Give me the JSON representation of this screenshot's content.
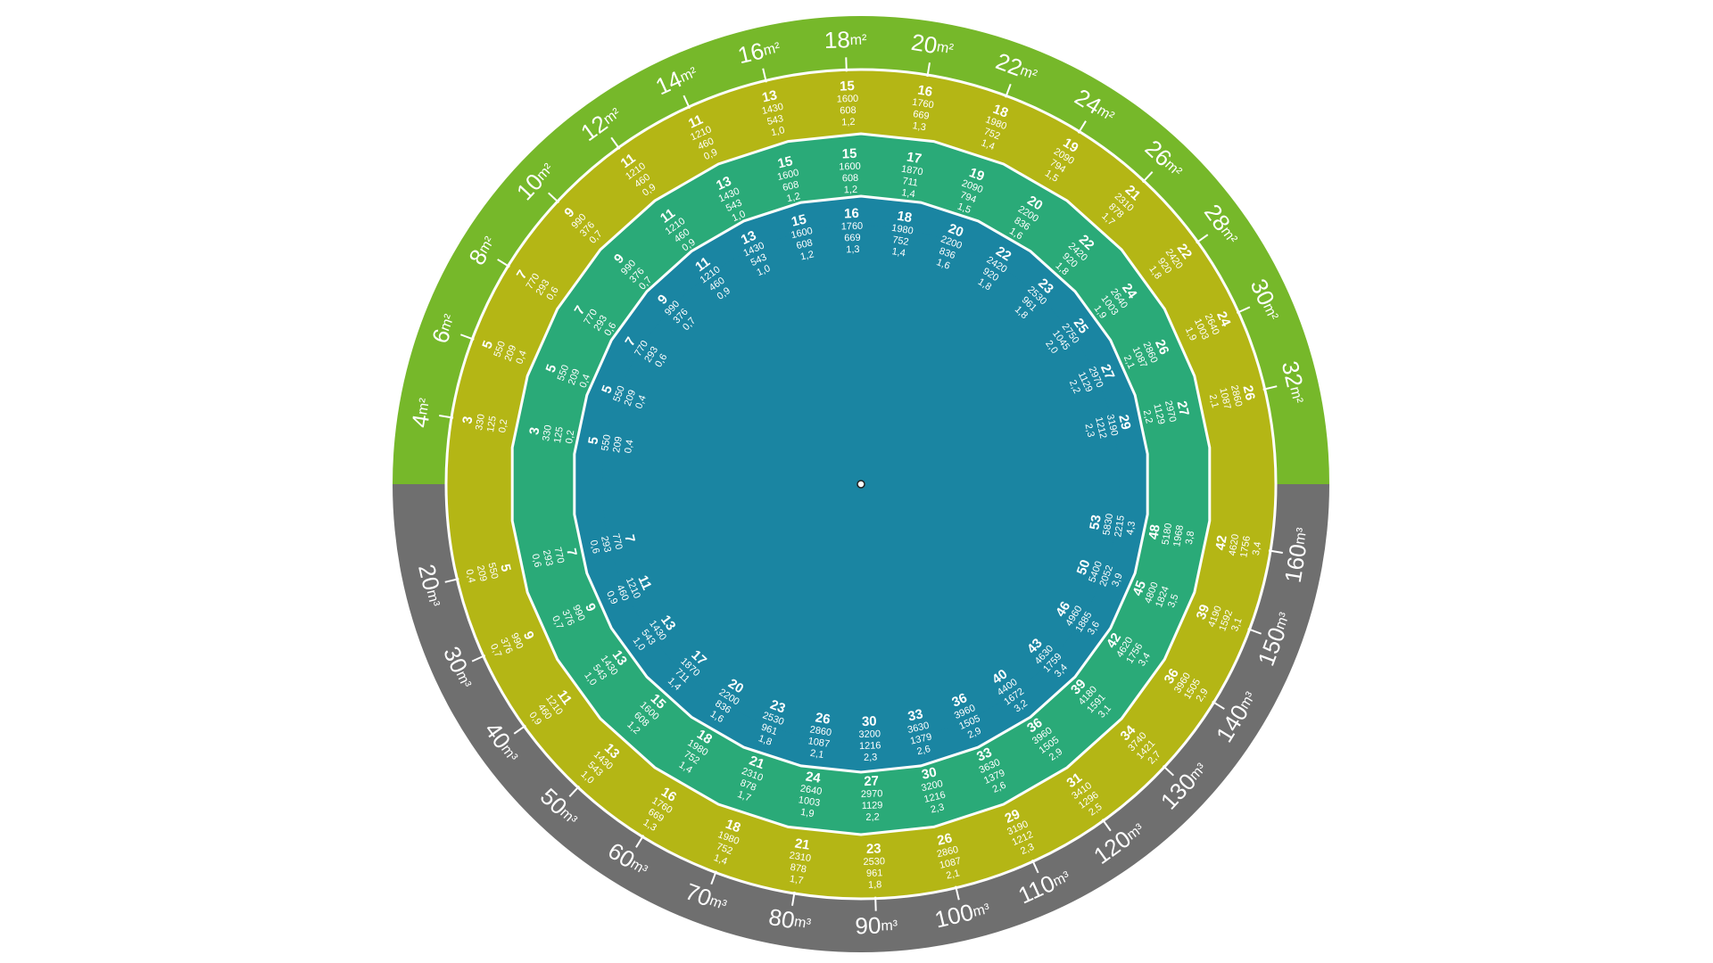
{
  "colors": {
    "area_band": "#76b82a",
    "volume_band": "#6f6f6f",
    "ring1": "#b4b615",
    "ring2": "#2aaa78",
    "ring3": "#1a85a2",
    "center": "#1a85a2",
    "divider": "#ffffff"
  },
  "area_labels": [
    "4m²",
    "6m²",
    "8m²",
    "10m²",
    "12m²",
    "14m²",
    "16m²",
    "18m²",
    "20m²",
    "22m²",
    "24m²",
    "26m²",
    "28m²",
    "30m²",
    "32m²"
  ],
  "volume_labels": [
    "20m³",
    "30m³",
    "40m³",
    "50m³",
    "60m³",
    "70m³",
    "80m³",
    "90m³",
    "100m³",
    "110m³",
    "120m³",
    "130m³",
    "140m³",
    "150m³",
    "160m³"
  ],
  "ring1_top": [
    [
      "3",
      "330",
      "125",
      "0,2"
    ],
    [
      "5",
      "550",
      "209",
      "0,4"
    ],
    [
      "7",
      "770",
      "293",
      "0,6"
    ],
    [
      "9",
      "990",
      "376",
      "0,7"
    ],
    [
      "11",
      "1210",
      "460",
      "0,9"
    ],
    [
      "11",
      "1210",
      "460",
      "0,9"
    ],
    [
      "13",
      "1430",
      "543",
      "1,0"
    ],
    [
      "15",
      "1600",
      "608",
      "1,2"
    ],
    [
      "16",
      "1760",
      "669",
      "1,3"
    ],
    [
      "18",
      "1980",
      "752",
      "1,4"
    ],
    [
      "19",
      "2090",
      "794",
      "1,5"
    ],
    [
      "21",
      "2310",
      "878",
      "1,7"
    ],
    [
      "22",
      "2420",
      "920",
      "1,8"
    ],
    [
      "24",
      "2640",
      "1003",
      "1,9"
    ],
    [
      "26",
      "2860",
      "1087",
      "2,1"
    ]
  ],
  "ring1_bottom": [
    [
      "5",
      "550",
      "209",
      "0,4"
    ],
    [
      "9",
      "990",
      "376",
      "0,7"
    ],
    [
      "11",
      "1210",
      "460",
      "0,9"
    ],
    [
      "13",
      "1430",
      "543",
      "1,0"
    ],
    [
      "16",
      "1760",
      "669",
      "1,3"
    ],
    [
      "18",
      "1980",
      "752",
      "1,4"
    ],
    [
      "21",
      "2310",
      "878",
      "1,7"
    ],
    [
      "23",
      "2530",
      "961",
      "1,8"
    ],
    [
      "26",
      "2860",
      "1087",
      "2,1"
    ],
    [
      "29",
      "3190",
      "1212",
      "2,3"
    ],
    [
      "31",
      "3410",
      "1296",
      "2,5"
    ],
    [
      "34",
      "3740",
      "1421",
      "2,7"
    ],
    [
      "36",
      "3960",
      "1505",
      "2,9"
    ],
    [
      "39",
      "4190",
      "1592",
      "3,1"
    ],
    [
      "42",
      "4620",
      "1756",
      "3,4"
    ]
  ],
  "ring2_top": [
    [
      "3",
      "330",
      "125",
      "0,2"
    ],
    [
      "5",
      "550",
      "209",
      "0,4"
    ],
    [
      "7",
      "770",
      "293",
      "0,6"
    ],
    [
      "9",
      "990",
      "376",
      "0,7"
    ],
    [
      "11",
      "1210",
      "460",
      "0,9"
    ],
    [
      "13",
      "1430",
      "543",
      "1,0"
    ],
    [
      "15",
      "1600",
      "608",
      "1,2"
    ],
    [
      "15",
      "1600",
      "608",
      "1,2"
    ],
    [
      "17",
      "1870",
      "711",
      "1,4"
    ],
    [
      "19",
      "2090",
      "794",
      "1,5"
    ],
    [
      "20",
      "2200",
      "836",
      "1,6"
    ],
    [
      "22",
      "2420",
      "920",
      "1,8"
    ],
    [
      "24",
      "2640",
      "1003",
      "1,9"
    ],
    [
      "26",
      "2860",
      "1087",
      "2,1"
    ],
    [
      "27",
      "2970",
      "1129",
      "2,2"
    ]
  ],
  "ring2_bottom": [
    [
      "7",
      "770",
      "293",
      "0,6"
    ],
    [
      "9",
      "990",
      "376",
      "0,7"
    ],
    [
      "13",
      "1430",
      "543",
      "1,0"
    ],
    [
      "15",
      "1600",
      "608",
      "1,2"
    ],
    [
      "18",
      "1980",
      "752",
      "1,4"
    ],
    [
      "21",
      "2310",
      "878",
      "1,7"
    ],
    [
      "24",
      "2640",
      "1003",
      "1,9"
    ],
    [
      "27",
      "2970",
      "1129",
      "2,2"
    ],
    [
      "30",
      "3200",
      "1216",
      "2,3"
    ],
    [
      "33",
      "3630",
      "1379",
      "2,6"
    ],
    [
      "36",
      "3960",
      "1505",
      "2,9"
    ],
    [
      "39",
      "4180",
      "1591",
      "3,1"
    ],
    [
      "42",
      "4620",
      "1756",
      "3,4"
    ],
    [
      "45",
      "4800",
      "1824",
      "3,5"
    ],
    [
      "48",
      "5180",
      "1968",
      "3,8"
    ]
  ],
  "ring3_top": [
    [
      "5",
      "550",
      "209",
      "0,4"
    ],
    [
      "5",
      "550",
      "209",
      "0,4"
    ],
    [
      "7",
      "770",
      "293",
      "0,6"
    ],
    [
      "9",
      "990",
      "376",
      "0,7"
    ],
    [
      "11",
      "1210",
      "460",
      "0,9"
    ],
    [
      "13",
      "1430",
      "543",
      "1,0"
    ],
    [
      "15",
      "1600",
      "608",
      "1,2"
    ],
    [
      "16",
      "1760",
      "669",
      "1,3"
    ],
    [
      "18",
      "1980",
      "752",
      "1,4"
    ],
    [
      "20",
      "2200",
      "836",
      "1,6"
    ],
    [
      "22",
      "2420",
      "920",
      "1,8"
    ],
    [
      "23",
      "2530",
      "961",
      "1,8"
    ],
    [
      "25",
      "2750",
      "1045",
      "2,0"
    ],
    [
      "27",
      "2970",
      "1129",
      "2,2"
    ],
    [
      "29",
      "3190",
      "1212",
      "2,3"
    ]
  ],
  "ring3_bottom": [
    [
      "7",
      "770",
      "293",
      "0,6"
    ],
    [
      "11",
      "1210",
      "460",
      "0,9"
    ],
    [
      "13",
      "1430",
      "543",
      "1,0"
    ],
    [
      "17",
      "1870",
      "711",
      "1,4"
    ],
    [
      "20",
      "2200",
      "836",
      "1,6"
    ],
    [
      "23",
      "2530",
      "961",
      "1,8"
    ],
    [
      "26",
      "2860",
      "1087",
      "2,1"
    ],
    [
      "30",
      "3200",
      "1216",
      "2,3"
    ],
    [
      "33",
      "3630",
      "1379",
      "2,6"
    ],
    [
      "36",
      "3960",
      "1505",
      "2,9"
    ],
    [
      "40",
      "4400",
      "1672",
      "3,2"
    ],
    [
      "43",
      "4630",
      "1759",
      "3,4"
    ],
    [
      "46",
      "4960",
      "1885",
      "3,6"
    ],
    [
      "50",
      "5400",
      "2052",
      "3,9"
    ],
    [
      "53",
      "5830",
      "2215",
      "4,3"
    ]
  ]
}
